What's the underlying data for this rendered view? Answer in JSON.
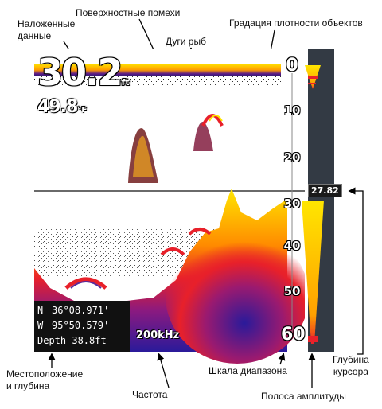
{
  "callouts": {
    "overlay_data": "Наложенные\nданные",
    "surface_clutter": "Поверхностные помехи",
    "density_gradation": "Градация плотности объектов",
    "fish_arches": "Дуги рыб",
    "position_depth": "Местоположение\nи глубина",
    "frequency": "Частота",
    "range_scale": "Шкала диапазона",
    "cursor_depth": "Глубина\nкурсора",
    "amplitude_bar": "Полоса амплитуды"
  },
  "screen": {
    "depth_value": "30.2",
    "depth_unit": "ft",
    "temp_value": "49.8",
    "temp_unit": "°F",
    "lat_label": "N",
    "lat_value": "36°08.971'",
    "lon_label": "W",
    "lon_value": "95°50.579'",
    "depth_line": "Depth 38.8ft",
    "frequency": "200kHz",
    "scale_labels": [
      "0",
      "10",
      "20",
      "30",
      "40",
      "50",
      "60"
    ],
    "cursor_depth": "27.82"
  },
  "colors": {
    "sonar_yellow": "#ffe600",
    "sonar_red": "#e8202a",
    "sonar_blue": "#2a1a9a",
    "amplitude_bar_bg": "#333a44"
  }
}
